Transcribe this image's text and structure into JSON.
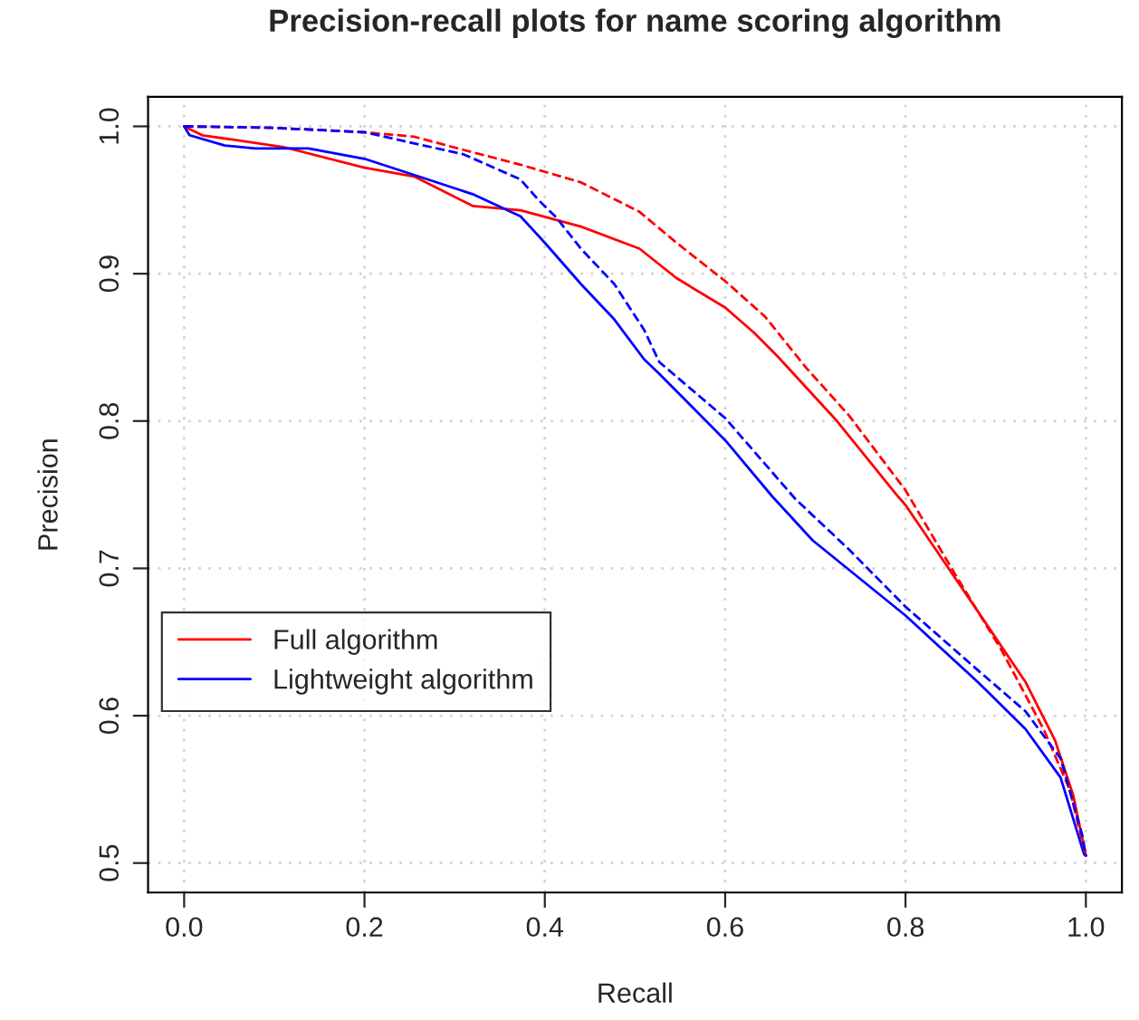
{
  "chart_data": {
    "type": "line",
    "title": "Precision-recall plots for name scoring algorithm",
    "xlabel": "Recall",
    "ylabel": "Precision",
    "xlim": [
      -0.04,
      1.04
    ],
    "ylim": [
      0.48,
      1.02
    ],
    "xticks": [
      {
        "value": 0,
        "label": "0.0"
      },
      0.2,
      0.4,
      0.6,
      0.8,
      {
        "value": 1,
        "label": "1.0"
      }
    ],
    "yticks": [
      0.5,
      0.6,
      0.7,
      0.8,
      0.9,
      {
        "value": 1,
        "label": "1.0"
      }
    ],
    "grid": true,
    "legend": "left",
    "series": [
      {
        "name": "Full algorithm",
        "color": "#ff0000",
        "line_style": "solid",
        "x": [
          0,
          0.02,
          0.11,
          0.2,
          0.255,
          0.32,
          0.373,
          0.44,
          0.505,
          0.546,
          0.6,
          0.632,
          0.658,
          0.724,
          0.79,
          0.8,
          0.88,
          0.933,
          0.966,
          0.986,
          1.0
        ],
        "values": [
          1.0,
          0.994,
          0.986,
          0.972,
          0.966,
          0.946,
          0.943,
          0.932,
          0.917,
          0.897,
          0.877,
          0.86,
          0.844,
          0.8,
          0.75,
          0.743,
          0.671,
          0.623,
          0.583,
          0.546,
          0.505
        ]
      },
      {
        "name": "Lightweight algorithm",
        "color": "#0000ff",
        "line_style": "solid",
        "x": [
          0,
          0.006,
          0.045,
          0.079,
          0.138,
          0.2,
          0.27,
          0.32,
          0.373,
          0.4,
          0.44,
          0.477,
          0.51,
          0.527,
          0.6,
          0.652,
          0.697,
          0.8,
          0.88,
          0.933,
          0.972,
          0.998,
          1.0
        ],
        "values": [
          1.0,
          0.994,
          0.987,
          0.985,
          0.985,
          0.978,
          0.964,
          0.954,
          0.939,
          0.921,
          0.893,
          0.869,
          0.842,
          0.832,
          0.787,
          0.749,
          0.719,
          0.668,
          0.623,
          0.591,
          0.558,
          0.506,
          0.505
        ]
      },
      {
        "color": "#ff0000",
        "line_style": "dashed",
        "x": [
          0,
          0.1,
          0.2,
          0.255,
          0.31,
          0.373,
          0.44,
          0.505,
          0.546,
          0.6,
          0.644,
          0.69,
          0.737,
          0.8,
          0.855,
          0.907,
          0.953,
          0.982,
          1.0
        ],
        "values": [
          1.0,
          0.999,
          0.996,
          0.993,
          0.984,
          0.974,
          0.962,
          0.942,
          0.921,
          0.895,
          0.871,
          0.836,
          0.804,
          0.753,
          0.696,
          0.644,
          0.591,
          0.55,
          0.505
        ]
      },
      {
        "color": "#0000ff",
        "line_style": "dashed",
        "x": [
          0,
          0.1,
          0.2,
          0.31,
          0.373,
          0.393,
          0.413,
          0.44,
          0.477,
          0.51,
          0.527,
          0.6,
          0.678,
          0.737,
          0.8,
          0.88,
          0.933,
          0.972,
          0.996,
          1.0
        ],
        "values": [
          1.0,
          0.999,
          0.996,
          0.981,
          0.964,
          0.95,
          0.938,
          0.917,
          0.893,
          0.862,
          0.84,
          0.802,
          0.747,
          0.713,
          0.674,
          0.631,
          0.603,
          0.571,
          0.519,
          0.505
        ]
      }
    ]
  }
}
